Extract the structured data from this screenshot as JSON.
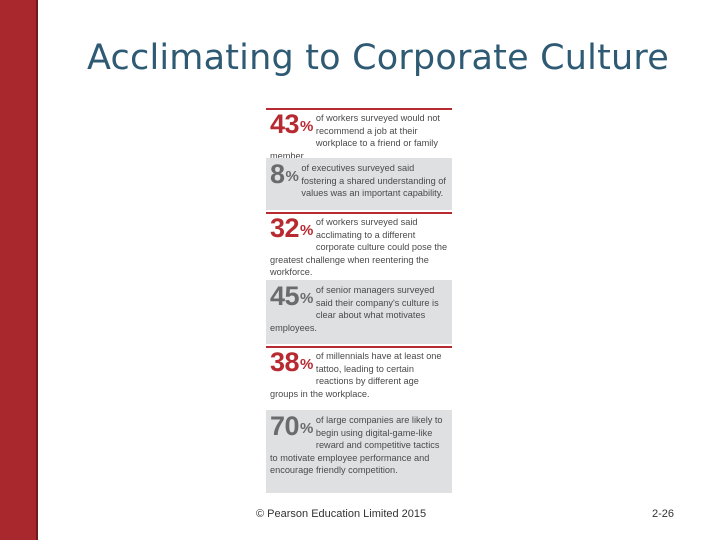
{
  "slide": {
    "title": "Acclimating to Corporate Culture",
    "footer_copyright": "© Pearson Education Limited 2015",
    "slide_number": "2-26",
    "accent_color": "#a8282d",
    "title_color": "#2e5a73"
  },
  "stats": [
    {
      "value": "43",
      "sign": "%",
      "color": "#b72a31",
      "text": "of workers surveyed would not recommend a job at their workplace to a friend or family member."
    },
    {
      "value": "8",
      "sign": "%",
      "color": "#555555",
      "text": "of executives surveyed said fostering a shared understanding of values was an important capability."
    },
    {
      "value": "32",
      "sign": "%",
      "color": "#b72a31",
      "text": "of workers surveyed said acclimating to a different corporate culture could pose the greatest challenge when reentering the workforce."
    },
    {
      "value": "45",
      "sign": "%",
      "color": "#555555",
      "text": "of senior managers surveyed said their company's culture is clear about what motivates employees."
    },
    {
      "value": "38",
      "sign": "%",
      "color": "#b72a31",
      "text": "of millennials have at least one tattoo, leading to certain reactions by different age groups in the workplace."
    },
    {
      "value": "70",
      "sign": "%",
      "color": "#555555",
      "text": "of large companies are likely to begin using digital-game-like reward and competitive tactics to motivate employee performance and encourage friendly competition."
    }
  ]
}
